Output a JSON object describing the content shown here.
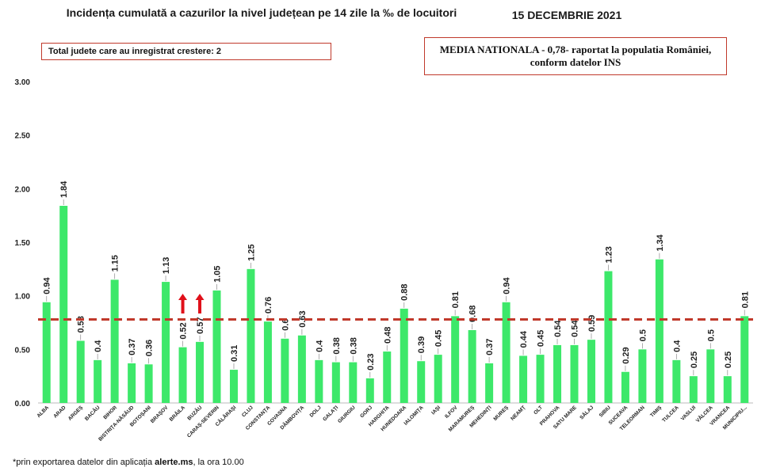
{
  "header": {
    "title": "Incidența cumulată a cazurilor la nivel județean pe 14 zile la ‰ de locuitori",
    "date": "15 DECEMBRIE 2021"
  },
  "info_left": "Total judete care au inregistrat crestere: 2",
  "info_right": {
    "line1": "MEDIA NATIONALA - 0,78-  raportat la populatia României,",
    "line2": "conform datelor INS"
  },
  "footnote": {
    "prefix": "*prin exportarea datelor din aplicația ",
    "source": "alerte.ms",
    "suffix": ", la ora 10.00"
  },
  "colors": {
    "bar": "#3de86a",
    "reference_line": "#c0392b",
    "arrow": "#e0101a",
    "box_border": "#c0392b"
  },
  "chart_data": {
    "type": "bar",
    "categories": [
      "ALBA",
      "ARAD",
      "ARGEȘ",
      "BACĂU",
      "BIHOR",
      "BISTRIȚA-NĂSĂUD",
      "BOTOȘANI",
      "BRAȘOV",
      "BRĂILA",
      "BUZĂU",
      "CARAȘ-SEVERIN",
      "CĂLĂRAȘI",
      "CLUJ",
      "CONSTANȚA",
      "COVASNA",
      "DÂMBOVIȚA",
      "DOLJ",
      "GALAȚI",
      "GIURGIU",
      "GORJ",
      "HARGHITA",
      "HUNEDOARA",
      "IALOMIȚA",
      "IAȘI",
      "ILFOV",
      "MARAMUREȘ",
      "MEHEDINȚI",
      "MUREȘ",
      "NEAMȚ",
      "OLT",
      "PRAHOVA",
      "SATU MARE",
      "SĂLAJ",
      "SIBIU",
      "SUCEAVA",
      "TELEORMAN",
      "TIMIȘ",
      "TULCEA",
      "VASLUI",
      "VÂLCEA",
      "VRANCEA",
      "MUNICIPIU..."
    ],
    "values": [
      0.94,
      1.84,
      0.58,
      0.4,
      1.15,
      0.37,
      0.36,
      1.13,
      0.52,
      0.57,
      1.05,
      0.31,
      1.25,
      0.76,
      0.6,
      0.63,
      0.4,
      0.38,
      0.38,
      0.23,
      0.48,
      0.88,
      0.39,
      0.45,
      0.81,
      0.68,
      0.37,
      0.94,
      0.44,
      0.45,
      0.54,
      0.54,
      0.59,
      1.23,
      0.29,
      0.5,
      1.34,
      0.4,
      0.25,
      0.5,
      0.25,
      0.81
    ],
    "value_labels": [
      "0.94",
      "1.84",
      "0.58",
      "0.4",
      "1.15",
      "0.37",
      "0.36",
      "1.13",
      "0.52",
      "0.57",
      "1.05",
      "0.31",
      "1.25",
      "0.76",
      "0.6",
      "0.63",
      "0.4",
      "0.38",
      "0.38",
      "0.23",
      "0.48",
      "0.88",
      "0.39",
      "0.45",
      "0.81",
      "0.68",
      "0.37",
      "0.94",
      "0.44",
      "0.45",
      "0.54",
      "0.54",
      "0.59",
      "1.23",
      "0.29",
      "0.5",
      "1.34",
      "0.4",
      "0.25",
      "0.5",
      "0.25",
      "0.81"
    ],
    "y_ticks": [
      "0.00",
      "0.50",
      "1.00",
      "1.50",
      "2.00",
      "2.50",
      "3.00"
    ],
    "ylim": [
      0,
      3
    ],
    "reference_line": 0.78,
    "increase_markers": [
      "BRĂILA",
      "BUZĂU"
    ],
    "grid": false,
    "legend": "none"
  }
}
